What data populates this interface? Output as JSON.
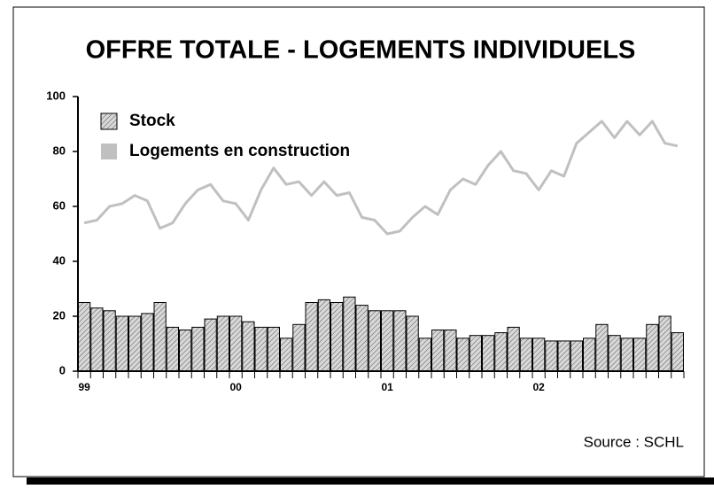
{
  "chart_data": {
    "type": "bar",
    "title": "OFFRE TOTALE - LOGEMENTS INDIVIDUELS",
    "source": "Source : SCHL",
    "categories": [
      "99",
      null,
      null,
      null,
      null,
      null,
      null,
      null,
      null,
      null,
      null,
      null,
      "00",
      null,
      null,
      null,
      null,
      null,
      null,
      null,
      null,
      null,
      null,
      null,
      "01",
      null,
      null,
      null,
      null,
      null,
      null,
      null,
      null,
      null,
      null,
      null,
      "02",
      null,
      null,
      null,
      null,
      null,
      null,
      null,
      null,
      null,
      null,
      null
    ],
    "series": [
      {
        "name": "Stock",
        "type": "bar",
        "color": "#c8c8c8",
        "pattern": "hatch",
        "values": [
          25,
          23,
          22,
          20,
          20,
          21,
          25,
          16,
          15,
          16,
          19,
          20,
          20,
          18,
          16,
          16,
          12,
          17,
          25,
          26,
          25,
          27,
          24,
          22,
          22,
          22,
          20,
          12,
          15,
          15,
          12,
          13,
          13,
          14,
          16,
          12,
          12,
          11,
          11,
          11,
          12,
          17,
          13,
          12,
          12,
          17,
          20,
          14
        ]
      },
      {
        "name": "Logements en construction",
        "type": "line",
        "color": "#c0c0c0",
        "values": [
          54,
          55,
          60,
          61,
          64,
          62,
          52,
          54,
          61,
          66,
          68,
          62,
          61,
          55,
          66,
          74,
          68,
          69,
          64,
          69,
          64,
          65,
          56,
          55,
          50,
          51,
          56,
          60,
          57,
          66,
          70,
          68,
          75,
          80,
          73,
          72,
          66,
          73,
          71,
          83,
          87,
          91,
          85,
          91,
          86,
          91,
          83,
          82
        ]
      }
    ],
    "ylim": [
      0,
      100
    ],
    "yticks": [
      0,
      20,
      40,
      60,
      80,
      100
    ],
    "legend": "top-left"
  }
}
